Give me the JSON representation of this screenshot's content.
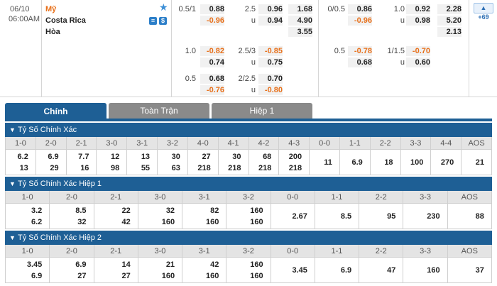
{
  "match": {
    "date": "06/10",
    "time": "06:00AM",
    "home": "Mỹ",
    "away": "Costa Rica",
    "draw": "Hòa",
    "more_badge": "+69",
    "star_icon": "star-icon",
    "stats_icon": "stats-icon",
    "odds_icon": "dollar-icon"
  },
  "odds": {
    "ft_handicap": [
      {
        "line": "0.5/1",
        "home": "0.88",
        "away": "-0.96"
      },
      {
        "line": "1.0",
        "home": "-0.82",
        "away": "0.74"
      },
      {
        "line": "0.5",
        "home": "0.68",
        "away": "-0.76"
      }
    ],
    "ft_overunder": [
      {
        "line": "2.5",
        "u": "u",
        "over": "0.96",
        "under": "0.94"
      },
      {
        "line": "2.5/3",
        "u": "u",
        "over": "-0.85",
        "under": "0.75"
      },
      {
        "line": "2/2.5",
        "u": "u",
        "over": "0.70",
        "under": "-0.80"
      }
    ],
    "ft_1x2": [
      "1.68",
      "4.90",
      "3.55"
    ],
    "h1_handicap": [
      {
        "line": "0/0.5",
        "home": "0.86",
        "away": "-0.96"
      },
      {
        "line": "0.5",
        "home": "-0.78",
        "away": "0.68"
      }
    ],
    "h1_overunder": [
      {
        "line": "1.0",
        "u": "u",
        "over": "0.92",
        "under": "0.98"
      },
      {
        "line": "1/1.5",
        "u": "u",
        "over": "-0.70",
        "under": "0.60"
      }
    ],
    "h1_1x2": [
      "2.28",
      "5.20",
      "2.13"
    ]
  },
  "tabs": [
    "Chính",
    "Toàn Trận",
    "Hiệp 1"
  ],
  "sections": [
    {
      "title": "Tỷ Số Chính Xác",
      "columns": [
        {
          "h": "1-0",
          "a": "6.2",
          "b": "13"
        },
        {
          "h": "2-0",
          "a": "6.9",
          "b": "29"
        },
        {
          "h": "2-1",
          "a": "7.7",
          "b": "16"
        },
        {
          "h": "3-0",
          "a": "12",
          "b": "98"
        },
        {
          "h": "3-1",
          "a": "13",
          "b": "55"
        },
        {
          "h": "3-2",
          "a": "30",
          "b": "63"
        },
        {
          "h": "4-0",
          "a": "27",
          "b": "218"
        },
        {
          "h": "4-1",
          "a": "30",
          "b": "218"
        },
        {
          "h": "4-2",
          "a": "68",
          "b": "218"
        },
        {
          "h": "4-3",
          "a": "200",
          "b": "218"
        },
        {
          "h": "0-0",
          "s": "11"
        },
        {
          "h": "1-1",
          "s": "6.9"
        },
        {
          "h": "2-2",
          "s": "18"
        },
        {
          "h": "3-3",
          "s": "100"
        },
        {
          "h": "4-4",
          "s": "270"
        },
        {
          "h": "AOS",
          "s": "21"
        }
      ]
    },
    {
      "title": "Tỷ Số Chính Xác Hiệp 1",
      "columns": [
        {
          "h": "1-0",
          "a": "3.2",
          "b": "6.2"
        },
        {
          "h": "2-0",
          "a": "8.5",
          "b": "32"
        },
        {
          "h": "2-1",
          "a": "22",
          "b": "42"
        },
        {
          "h": "3-0",
          "a": "32",
          "b": "160"
        },
        {
          "h": "3-1",
          "a": "82",
          "b": "160"
        },
        {
          "h": "3-2",
          "a": "160",
          "b": "160"
        },
        {
          "h": "0-0",
          "s": "2.67"
        },
        {
          "h": "1-1",
          "s": "8.5"
        },
        {
          "h": "2-2",
          "s": "95"
        },
        {
          "h": "3-3",
          "s": "230"
        },
        {
          "h": "AOS",
          "s": "88"
        }
      ]
    },
    {
      "title": "Tỷ Số Chính Xác Hiệp 2",
      "columns": [
        {
          "h": "1-0",
          "a": "3.45",
          "b": "6.9"
        },
        {
          "h": "2-0",
          "a": "6.9",
          "b": "27"
        },
        {
          "h": "2-1",
          "a": "14",
          "b": "27"
        },
        {
          "h": "3-0",
          "a": "21",
          "b": "160"
        },
        {
          "h": "3-1",
          "a": "42",
          "b": "160"
        },
        {
          "h": "3-2",
          "a": "160",
          "b": "160"
        },
        {
          "h": "0-0",
          "s": "3.45"
        },
        {
          "h": "1-1",
          "s": "6.9"
        },
        {
          "h": "2-2",
          "s": "47"
        },
        {
          "h": "3-3",
          "s": "160"
        },
        {
          "h": "AOS",
          "s": "37"
        }
      ]
    }
  ]
}
